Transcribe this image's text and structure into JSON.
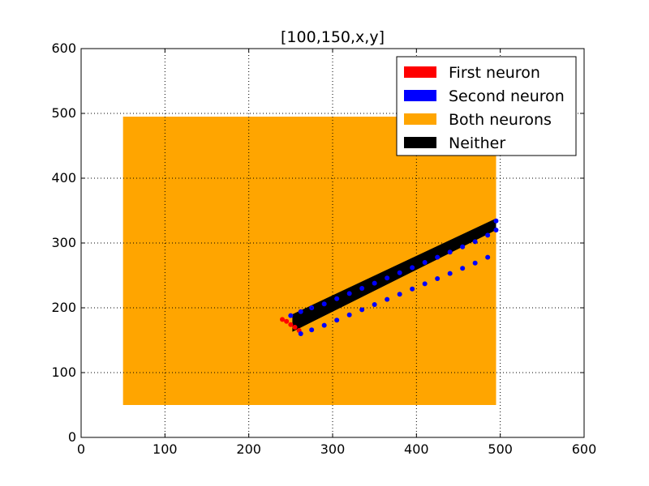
{
  "chart_data": {
    "type": "scatter",
    "title": "[100,150,x,y]",
    "xlabel": "",
    "ylabel": "",
    "xlim": [
      0,
      600
    ],
    "ylim": [
      0,
      600
    ],
    "xticks": [
      0,
      100,
      200,
      300,
      400,
      500,
      600
    ],
    "yticks": [
      0,
      100,
      200,
      300,
      400,
      500,
      600
    ],
    "grid": true,
    "legend_position": "top-right",
    "series": [
      {
        "name": "First neuron",
        "color": "#ff0000",
        "points": [
          [
            240,
            182
          ],
          [
            245,
            179
          ],
          [
            250,
            174
          ],
          [
            255,
            170
          ],
          [
            260,
            165
          ]
        ]
      },
      {
        "name": "Second neuron",
        "color": "#0000ff",
        "points": [
          [
            250,
            188
          ],
          [
            262,
            194
          ],
          [
            275,
            200
          ],
          [
            290,
            206
          ],
          [
            305,
            214
          ],
          [
            320,
            222
          ],
          [
            335,
            230
          ],
          [
            350,
            238
          ],
          [
            365,
            246
          ],
          [
            380,
            254
          ],
          [
            395,
            262
          ],
          [
            410,
            270
          ],
          [
            425,
            278
          ],
          [
            440,
            286
          ],
          [
            455,
            294
          ],
          [
            470,
            302
          ],
          [
            485,
            312
          ],
          [
            495,
            320
          ],
          [
            495,
            334
          ],
          [
            262,
            160
          ],
          [
            275,
            166
          ],
          [
            290,
            173
          ],
          [
            305,
            181
          ],
          [
            320,
            189
          ],
          [
            335,
            197
          ],
          [
            350,
            205
          ],
          [
            365,
            213
          ],
          [
            380,
            221
          ],
          [
            395,
            229
          ],
          [
            410,
            237
          ],
          [
            425,
            245
          ],
          [
            440,
            253
          ],
          [
            455,
            261
          ],
          [
            470,
            269
          ],
          [
            485,
            278
          ]
        ]
      },
      {
        "name": "Both neurons",
        "color": "#ffa500",
        "region": {
          "x": [
            50,
            495
          ],
          "y": [
            50,
            495
          ]
        }
      },
      {
        "name": "Neither",
        "color": "#000000",
        "band": {
          "x_start": 252,
          "x_end": 495,
          "lower_start": 163,
          "lower_end": 320,
          "upper_start": 190,
          "upper_end": 338
        }
      }
    ]
  }
}
